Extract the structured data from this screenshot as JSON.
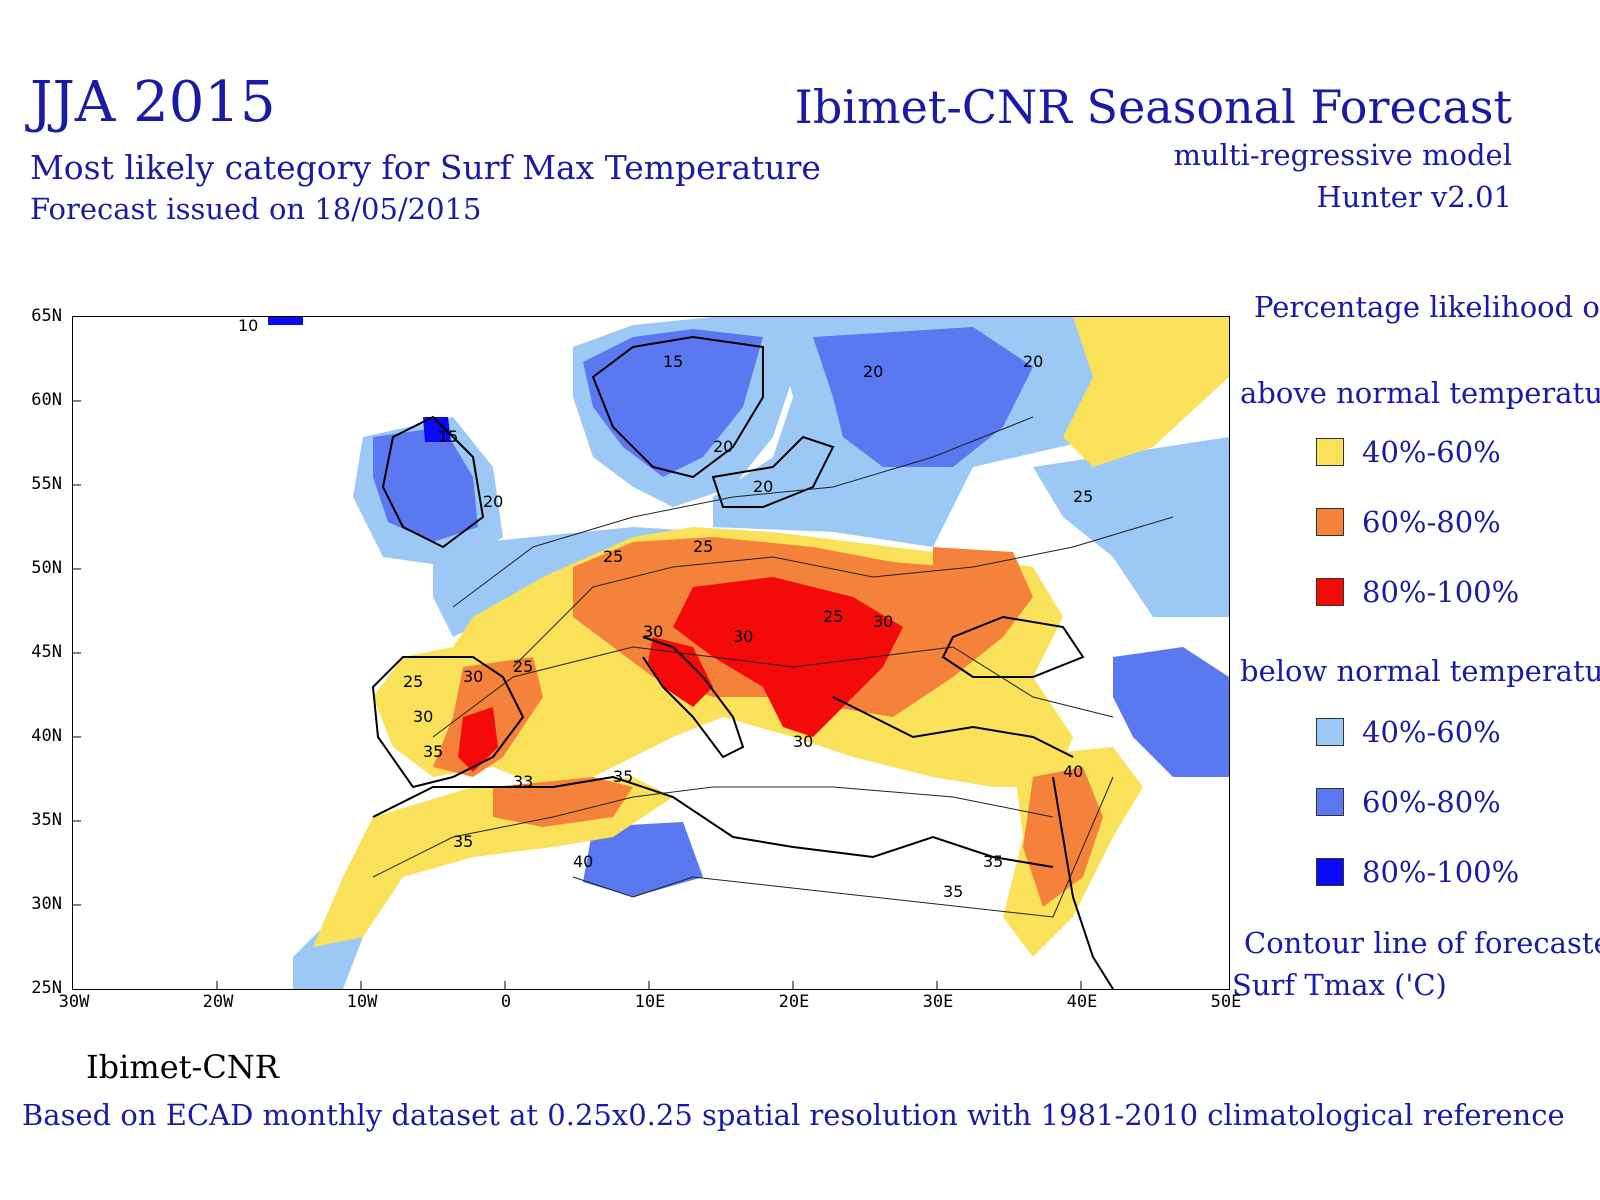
{
  "header": {
    "period": "JJA 2015",
    "subtitle": "Most likely category for Surf Max Temperature",
    "issued": "Forecast issued on 18/05/2015",
    "org_title": "Ibimet-CNR Seasonal Forecast",
    "model": "multi-regressive model",
    "version": "Hunter v2.01"
  },
  "map": {
    "lat_labels": [
      "65N",
      "60N",
      "55N",
      "50N",
      "45N",
      "40N",
      "35N",
      "30N",
      "25N"
    ],
    "lon_labels": [
      "30W",
      "20W",
      "10W",
      "0",
      "10E",
      "20E",
      "30E",
      "40E",
      "50E"
    ],
    "contour_labels": [
      "10",
      "15",
      "20",
      "25",
      "30",
      "33",
      "35",
      "40"
    ],
    "colors": {
      "above_40_60": "#fae15a",
      "above_60_80": "#f5823a",
      "above_80_100": "#f50a0a",
      "below_40_60": "#9cc8f5",
      "below_60_80": "#5a78f0",
      "below_80_100": "#0a0af5"
    }
  },
  "legend": {
    "heading": "Percentage likelihood of:",
    "above_heading": "above normal temperature",
    "below_heading": "below normal temperature",
    "above_items": [
      {
        "label": "40%-60%",
        "color": "#fae15a"
      },
      {
        "label": "60%-80%",
        "color": "#f5823a"
      },
      {
        "label": "80%-100%",
        "color": "#f50a0a"
      }
    ],
    "below_items": [
      {
        "label": "40%-60%",
        "color": "#9cc8f5"
      },
      {
        "label": "60%-80%",
        "color": "#5a78f0"
      },
      {
        "label": "80%-100%",
        "color": "#0a0af5"
      }
    ],
    "contour_heading_line1": "Contour line of forecasted",
    "contour_heading_line2": "Surf Tmax ('C)"
  },
  "footer": {
    "credit": "Ibimet-CNR",
    "note": "Based on ECAD monthly dataset at 0.25x0.25 spatial resolution with 1981-2010 climatological reference"
  }
}
